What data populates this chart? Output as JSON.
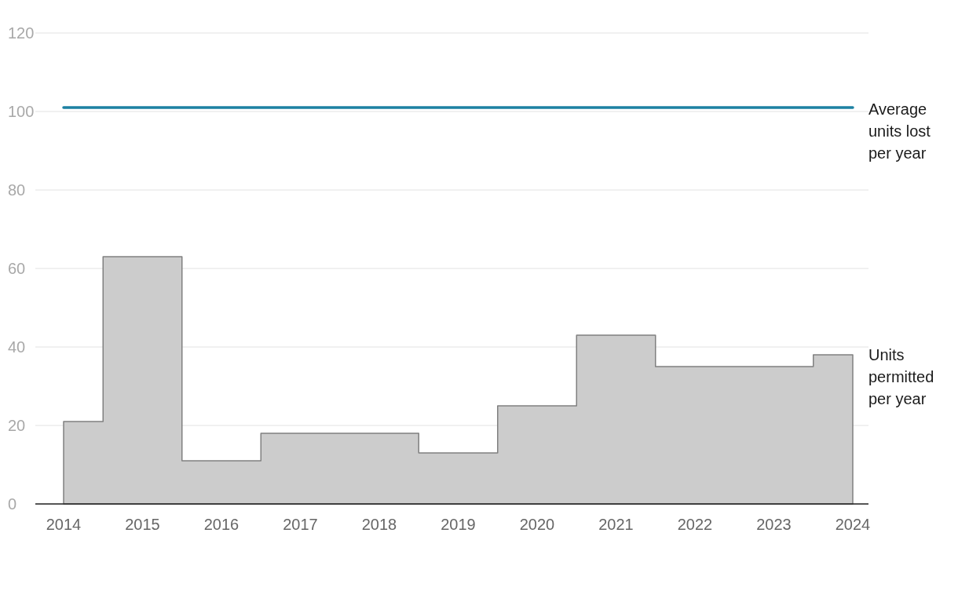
{
  "chart_data": {
    "type": "area",
    "x": [
      2014,
      2015,
      2016,
      2017,
      2018,
      2019,
      2020,
      2021,
      2022,
      2023,
      2024
    ],
    "series": [
      {
        "name": "Units permitted per year",
        "color": "#cccccc",
        "values": [
          21,
          63,
          11,
          18,
          18,
          13,
          25,
          43,
          35,
          35,
          38
        ]
      }
    ],
    "ref_lines": [
      {
        "axis": "y",
        "value": 101,
        "label": "Average units lost per year",
        "color": "#1d81a2"
      }
    ],
    "xlim": [
      2014,
      2024
    ],
    "xticks": [
      2014,
      2015,
      2016,
      2017,
      2018,
      2019,
      2020,
      2021,
      2022,
      2023,
      2024
    ],
    "ylim": [
      0,
      120
    ],
    "yticks": [
      0,
      20,
      40,
      60,
      80,
      100,
      120
    ],
    "grid": "y"
  }
}
